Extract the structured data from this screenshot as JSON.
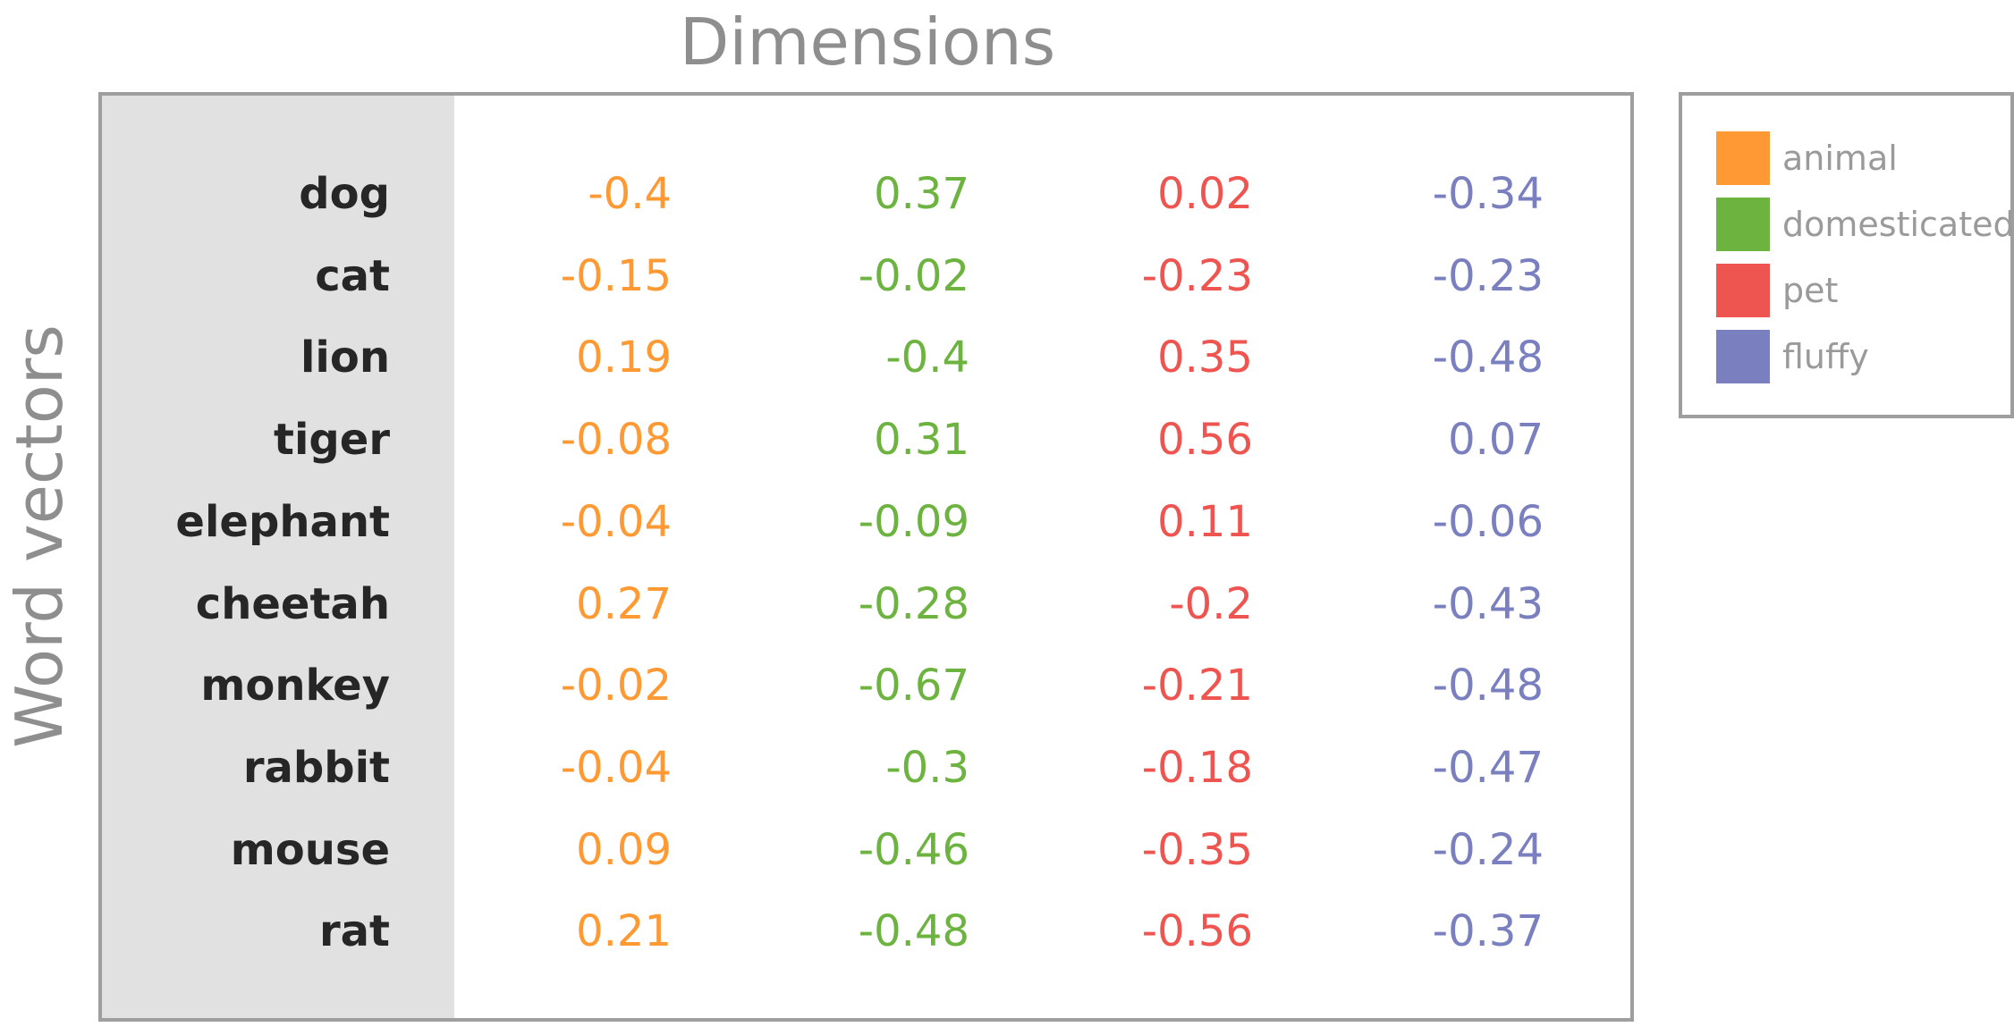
{
  "chart_data": {
    "type": "table",
    "title": "Dimensions",
    "ylabel": "Word vectors",
    "rows": [
      "dog",
      "cat",
      "lion",
      "tiger",
      "elephant",
      "cheetah",
      "monkey",
      "rabbit",
      "mouse",
      "rat"
    ],
    "series": [
      {
        "name": "animal",
        "color": "#ff9933",
        "values": [
          "-0.4",
          "-0.15",
          "0.19",
          "-0.08",
          "-0.04",
          "0.27",
          "-0.02",
          "-0.04",
          "0.09",
          "0.21"
        ]
      },
      {
        "name": "domesticated",
        "color": "#6db33f",
        "values": [
          "0.37",
          "-0.02",
          "-0.4",
          "0.31",
          "-0.09",
          "-0.28",
          "-0.67",
          "-0.3",
          "-0.46",
          "-0.48"
        ]
      },
      {
        "name": "pet",
        "color": "#ee5550",
        "values": [
          "0.02",
          "-0.23",
          "0.35",
          "0.56",
          "0.11",
          "-0.2",
          "-0.21",
          "-0.18",
          "-0.35",
          "-0.56"
        ]
      },
      {
        "name": "fluffy",
        "color": "#7a7fbf",
        "values": [
          "-0.34",
          "-0.23",
          "-0.48",
          "0.07",
          "-0.06",
          "-0.43",
          "-0.48",
          "-0.47",
          "-0.24",
          "-0.37"
        ]
      }
    ],
    "legend": "right"
  }
}
